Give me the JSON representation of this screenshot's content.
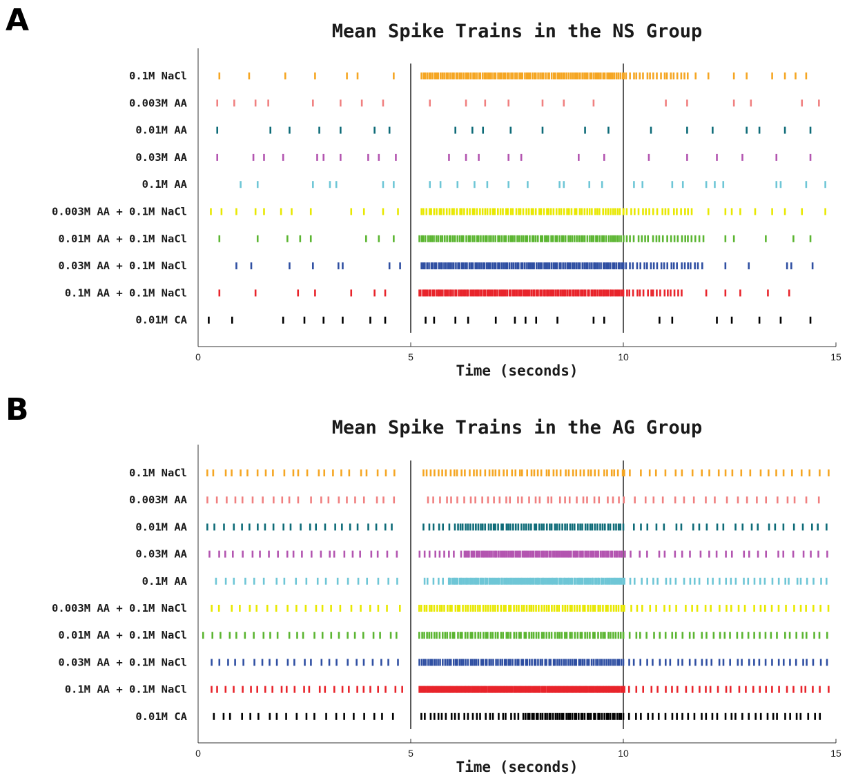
{
  "chart_data": [
    {
      "panel_letter": "A",
      "type": "scatter",
      "title": "Mean Spike Trains in the NS Group",
      "xlabel": "Time (seconds)",
      "xlim": [
        0,
        15
      ],
      "xticks": [
        "0",
        "5",
        "10",
        "15"
      ],
      "vertical_markers": [
        5,
        10
      ],
      "series": [
        {
          "name": "0.1M NaCl",
          "color": "#f5a623",
          "spikes": [
            0.5,
            1.2,
            2.05,
            2.75,
            3.5,
            3.75,
            4.6
          ],
          "dense": [
            [
              5.25,
              10.0,
              0.045
            ],
            [
              10.0,
              11.6,
              0.08
            ]
          ],
          "after": [
            11.7,
            12.0,
            12.6,
            12.9,
            13.5,
            13.8,
            14.05,
            14.3
          ]
        },
        {
          "name": "0.003M AA",
          "color": "#f08080",
          "spikes": [
            0.45,
            0.85,
            1.35,
            1.65,
            2.7,
            3.35,
            3.85,
            4.35,
            5.45,
            6.3,
            6.75,
            7.3,
            8.1,
            8.6,
            9.3,
            11.0,
            11.5,
            12.6,
            13.0,
            14.2,
            14.6
          ]
        },
        {
          "name": "0.01M AA",
          "color": "#0e6b78",
          "spikes": [
            0.45,
            1.7,
            2.15,
            2.85,
            3.35,
            4.15,
            4.5,
            6.05,
            6.45,
            6.7,
            7.35,
            8.1,
            9.1,
            9.65,
            10.65,
            11.5,
            12.1,
            12.9,
            13.2,
            13.8,
            14.4
          ]
        },
        {
          "name": "0.03M AA",
          "color": "#b355b0",
          "spikes": [
            0.45,
            1.3,
            1.55,
            2.0,
            2.8,
            2.95,
            3.35,
            4.0,
            4.25,
            4.65,
            5.9,
            6.3,
            6.6,
            7.3,
            7.6,
            8.95,
            9.55,
            10.6,
            11.5,
            12.2,
            12.8,
            13.6,
            14.4
          ]
        },
        {
          "name": "0.1M AA",
          "color": "#6ec6d6",
          "spikes": [
            1.0,
            1.4,
            2.7,
            3.1,
            3.25,
            4.35,
            4.6,
            5.45,
            5.7,
            6.1,
            6.5,
            6.8,
            7.3,
            7.75,
            8.5,
            8.6,
            9.2,
            9.5,
            10.25,
            10.45,
            11.15,
            11.4,
            11.95,
            12.15,
            12.35,
            13.6,
            13.7,
            14.3,
            14.75
          ]
        },
        {
          "name": "0.003M AA + 0.1M NaCl",
          "color": "#e8e800",
          "spikes": [
            0.3,
            0.55,
            0.9,
            1.35,
            1.55,
            1.95,
            2.2,
            2.65,
            3.6,
            3.9,
            4.35,
            4.7
          ],
          "dense": [
            [
              5.25,
              10.0,
              0.06
            ],
            [
              10.0,
              11.7,
              0.09
            ]
          ],
          "after": [
            12.0,
            12.4,
            12.55,
            12.75,
            13.1,
            13.5,
            13.8,
            14.2,
            14.75
          ]
        },
        {
          "name": "0.01M AA + 0.1M NaCl",
          "color": "#5bb531",
          "spikes": [
            0.5,
            1.4,
            2.1,
            2.4,
            2.65,
            3.95,
            4.25,
            4.6
          ],
          "dense": [
            [
              5.2,
              10.0,
              0.05
            ],
            [
              10.0,
              11.9,
              0.085
            ]
          ],
          "after": [
            12.4,
            12.6,
            13.35,
            14.0,
            14.4
          ]
        },
        {
          "name": "0.03M AA + 0.1M NaCl",
          "color": "#2f4fa2",
          "spikes": [
            0.9,
            1.25,
            2.15,
            2.7,
            3.3,
            3.4,
            4.5,
            4.75
          ],
          "dense": [
            [
              5.25,
              10.0,
              0.045
            ],
            [
              10.0,
              11.9,
              0.08
            ]
          ],
          "after": [
            12.4,
            12.95,
            13.85,
            13.95,
            14.45
          ]
        },
        {
          "name": "0.1M AA + 0.1M NaCl",
          "color": "#e8242b",
          "spikes": [
            0.5,
            1.35,
            2.35,
            2.75,
            3.6,
            4.15,
            4.4
          ],
          "dense": [
            [
              5.2,
              10.0,
              0.04
            ],
            [
              10.0,
              11.4,
              0.08
            ]
          ],
          "after": [
            11.95,
            12.4,
            12.75,
            13.4,
            13.9
          ]
        },
        {
          "name": "0.01M CA",
          "color": "#000000",
          "spikes": [
            0.25,
            0.8,
            2.0,
            2.5,
            2.95,
            3.4,
            4.05,
            4.4,
            5.35,
            5.55,
            6.05,
            6.35,
            7.0,
            7.45,
            7.7,
            7.95,
            8.45,
            9.3,
            9.55,
            10.85,
            11.15,
            12.2,
            12.55,
            13.2,
            13.7,
            14.4
          ]
        }
      ]
    },
    {
      "panel_letter": "B",
      "type": "scatter",
      "title": "Mean Spike Trains in the AG Group",
      "xlabel": "Time (seconds)",
      "xlim": [
        0,
        15
      ],
      "xticks": [
        "0",
        "5",
        "10",
        "15"
      ],
      "vertical_markers": [
        5,
        10
      ],
      "series": [
        {
          "name": "0.1M NaCl",
          "color": "#f5a623",
          "dense": [
            [
              0.2,
              4.8,
              0.2
            ],
            [
              5.3,
              10.0,
              0.09
            ],
            [
              10.0,
              14.9,
              0.2
            ]
          ]
        },
        {
          "name": "0.003M AA",
          "color": "#f08080",
          "dense": [
            [
              0.2,
              4.8,
              0.22
            ],
            [
              5.4,
              10.0,
              0.14
            ],
            [
              10.0,
              14.8,
              0.24
            ]
          ]
        },
        {
          "name": "0.01M AA",
          "color": "#0e6b78",
          "dense": [
            [
              0.2,
              4.8,
              0.2
            ],
            [
              5.3,
              6.1,
              0.12
            ],
            [
              6.1,
              10.0,
              0.06
            ],
            [
              10.0,
              14.9,
              0.2
            ]
          ]
        },
        {
          "name": "0.03M AA",
          "color": "#b355b0",
          "dense": [
            [
              0.25,
              4.85,
              0.2
            ],
            [
              5.2,
              6.3,
              0.12
            ],
            [
              6.3,
              10.0,
              0.04
            ],
            [
              10.0,
              14.9,
              0.2
            ]
          ]
        },
        {
          "name": "0.1M AA",
          "color": "#6ec6d6",
          "dense": [
            [
              0.4,
              4.8,
              0.24
            ],
            [
              5.3,
              5.9,
              0.12
            ],
            [
              5.9,
              10.0,
              0.035
            ],
            [
              10.0,
              14.9,
              0.14
            ]
          ]
        },
        {
          "name": "0.003M AA + 0.1M NaCl",
          "color": "#e8e800",
          "dense": [
            [
              0.3,
              4.8,
              0.22
            ],
            [
              5.2,
              10.0,
              0.06
            ],
            [
              10.0,
              14.9,
              0.16
            ]
          ]
        },
        {
          "name": "0.01M AA + 0.1M NaCl",
          "color": "#5bb531",
          "dense": [
            [
              0.1,
              4.8,
              0.2
            ],
            [
              5.2,
              10.0,
              0.06
            ],
            [
              10.0,
              14.9,
              0.14
            ]
          ]
        },
        {
          "name": "0.03M AA + 0.1M NaCl",
          "color": "#2f4fa2",
          "dense": [
            [
              0.3,
              4.8,
              0.2
            ],
            [
              5.2,
              10.0,
              0.05
            ],
            [
              10.0,
              14.85,
              0.14
            ]
          ]
        },
        {
          "name": "0.1M AA + 0.1M NaCl",
          "color": "#e8242b",
          "dense": [
            [
              0.3,
              4.8,
              0.18
            ],
            [
              5.2,
              10.0,
              0.03
            ],
            [
              10.0,
              14.9,
              0.16
            ]
          ]
        },
        {
          "name": "0.01M CA",
          "color": "#000000",
          "dense": [
            [
              0.35,
              4.75,
              0.22
            ],
            [
              5.25,
              7.7,
              0.1
            ],
            [
              7.7,
              10.0,
              0.05
            ],
            [
              10.0,
              14.7,
              0.14
            ]
          ]
        }
      ]
    }
  ]
}
